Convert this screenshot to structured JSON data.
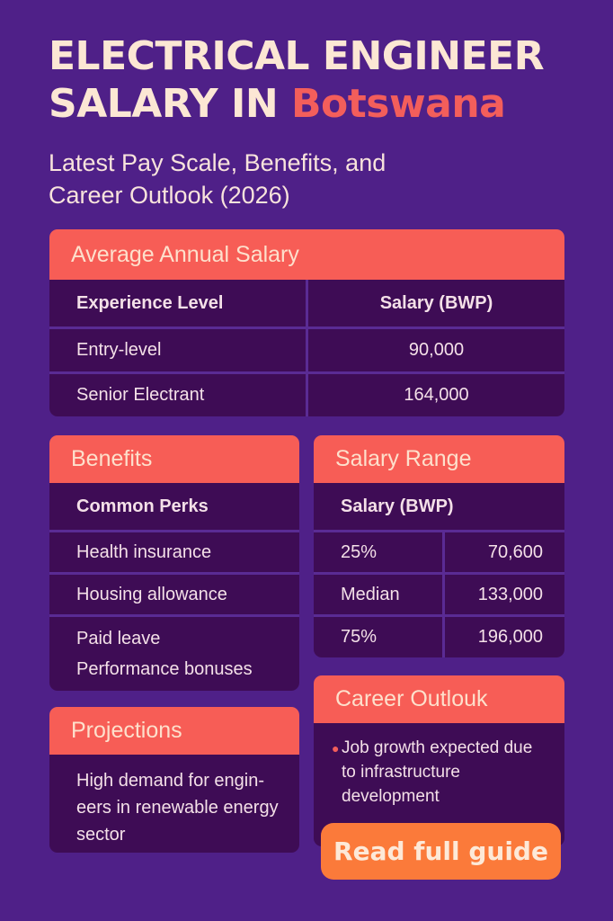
{
  "header": {
    "title_line1": "ELECTRICAL ENGINEER",
    "title_line2_prefix": "SALARY IN ",
    "title_line2_accent": "Botswana",
    "subtitle_line1": "Latest Pay Scale, Benefits, and",
    "subtitle_line2": "Career Outlook (2026)"
  },
  "average_salary": {
    "heading": "Average Annual Salary",
    "columns": [
      "Experience Level",
      "Salary (BWP)"
    ],
    "rows": [
      {
        "level": "Entry-level",
        "salary": "90,000"
      },
      {
        "level": "Senior Electrant",
        "salary": "164,000"
      }
    ]
  },
  "benefits": {
    "heading": "Benefits",
    "subheading": "Common Perks",
    "items": [
      "Health insurance",
      "Housing allowance",
      "Paid leave",
      "Performance bonuses"
    ]
  },
  "salary_range": {
    "heading": "Salary Range",
    "subheading": "Salary (BWP)",
    "rows": [
      {
        "label": "25%",
        "value": "70,600"
      },
      {
        "label": "Median",
        "value": "133,000"
      },
      {
        "label": "75%",
        "value": "196,000"
      }
    ]
  },
  "projections": {
    "heading": "Projections",
    "text": "High demand for engin-eers in renewable energy sector"
  },
  "career_outlook": {
    "heading": "Career Outlouk",
    "bullets": [
      "Job growth expected due to infrastructure development"
    ]
  },
  "cta": {
    "label": "Read full guide"
  },
  "colors": {
    "background": "#4f2088",
    "header_accent": "#f75d56",
    "cell_bg": "#3e0c55",
    "cta": "#fb7a3a",
    "title_text": "#fce7d4"
  }
}
